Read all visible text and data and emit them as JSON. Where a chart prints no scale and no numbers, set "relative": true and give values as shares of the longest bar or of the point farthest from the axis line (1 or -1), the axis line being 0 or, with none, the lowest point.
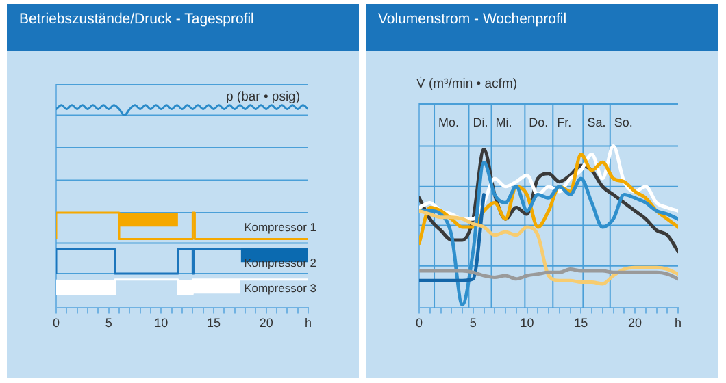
{
  "chart_data": [
    {
      "type": "step",
      "title": "Betriebszustände/Druck - Tagesprofil",
      "xlabel": "h",
      "relative": true,
      "xlim": [
        0,
        24
      ],
      "xticks": [
        0,
        {
          "value": 1,
          "label": null
        },
        {
          "value": 2,
          "label": null
        },
        {
          "value": 3,
          "label": null
        },
        {
          "value": 4,
          "label": null
        },
        5,
        {
          "value": 6,
          "label": null
        },
        {
          "value": 7,
          "label": null
        },
        {
          "value": 8,
          "label": null
        },
        {
          "value": 9,
          "label": null
        },
        10,
        {
          "value": 11,
          "label": null
        },
        {
          "value": 12,
          "label": null
        },
        {
          "value": 13,
          "label": null
        },
        {
          "value": 14,
          "label": null
        },
        15,
        {
          "value": 16,
          "label": null
        },
        {
          "value": 17,
          "label": null
        },
        {
          "value": 18,
          "label": null
        },
        {
          "value": 19,
          "label": null
        },
        20,
        {
          "value": 21,
          "label": null
        },
        {
          "value": 22,
          "label": null
        },
        {
          "value": 23,
          "label": null
        },
        {
          "value": 24,
          "label": null
        }
      ],
      "ref_lines": [
        {
          "axis": "y",
          "value": 1.1,
          "color": "#4a9fd8"
        },
        {
          "axis": "y",
          "value": 0.95,
          "color": "#4a9fd8"
        },
        {
          "axis": "y",
          "value": 0.79,
          "color": "#4a9fd8"
        },
        {
          "axis": "y",
          "value": 0.63,
          "color": "#4a9fd8"
        },
        {
          "axis": "y",
          "value": 0.47,
          "color": "#4a9fd8"
        },
        {
          "axis": "y",
          "value": 0.32,
          "color": "#4a9fd8"
        },
        {
          "axis": "y",
          "value": 0.17,
          "color": "#4a9fd8"
        }
      ],
      "series": [
        {
          "type": "line",
          "name": "p (bar • psig)",
          "color": "#2a8ac8",
          "x": [
            0,
            0.5,
            1,
            1.5,
            2,
            2.5,
            3,
            3.5,
            4,
            4.5,
            5,
            5.5,
            6,
            6.5,
            7,
            7.5,
            8,
            8.5,
            9,
            9.5,
            10,
            10.5,
            11,
            11.5,
            12,
            12.5,
            13,
            13.5,
            14,
            14.5,
            15,
            15.5,
            16,
            16.5,
            17,
            17.5,
            18,
            18.5,
            19,
            19.5,
            20,
            20.5,
            21,
            21.5,
            22,
            22.5,
            23,
            23.5,
            24
          ],
          "values": [
            0.98,
            1,
            0.98,
            1,
            0.98,
            1,
            0.98,
            1,
            0.98,
            1,
            0.98,
            1,
            0.98,
            0.95,
            0.98,
            1,
            0.98,
            1,
            0.98,
            1,
            0.98,
            1,
            0.98,
            1,
            0.98,
            1,
            0.98,
            1,
            0.98,
            1,
            0.98,
            1,
            0.98,
            1,
            0.98,
            1,
            0.98,
            1,
            0.98,
            1,
            0.98,
            1,
            0.98,
            1,
            0.98,
            1,
            0.98,
            1,
            0.98
          ]
        },
        {
          "color": "#f5a800",
          "x": [
            5.9,
            11.6
          ],
          "values": [
            0.435,
            0.435
          ]
        },
        {
          "color": "#0b6ab0",
          "x": [
            17.6,
            24
          ],
          "values": [
            0.26,
            0.26
          ]
        },
        {
          "color": "#ffffff",
          "x": [
            0,
            5.5,
            5.6,
            11.7,
            17.5
          ],
          "values": [
            0.105,
            0.105,
            null,
            0.105,
            0.105
          ]
        },
        {
          "name": "Kompressor 1",
          "color": "#f5a800",
          "x": [
            0,
            6,
            13,
            13.2,
            17.5,
            24
          ],
          "values": [
            0.34,
            0.47,
            0.34,
            0.47,
            0.34,
            0.34
          ]
        },
        {
          "name": "Kompressor 2",
          "color": "#1b75bc",
          "x": [
            0,
            5.6,
            11.6,
            13,
            13.1,
            17.5,
            24
          ],
          "values": [
            0.17,
            0.29,
            0.17,
            0.29,
            0.17,
            0.29,
            0.29
          ]
        },
        {
          "name": "Kompressor 3",
          "color": "#ffffff",
          "x": [
            0,
            5.6,
            11.6,
            13,
            13.1,
            24
          ],
          "values": [
            0.14,
            0.07,
            0.14,
            0.07,
            0.14,
            0.14
          ]
        }
      ]
    },
    {
      "type": "line",
      "title": "Volumenstrom - Wochenprofil",
      "ylabel": "V̇ (m³/min • acfm)",
      "xlabel": "h",
      "relative": true,
      "xlim": [
        0,
        24
      ],
      "xticks": [
        0,
        {
          "value": 1,
          "label": null
        },
        {
          "value": 2,
          "label": null
        },
        {
          "value": 3,
          "label": null
        },
        {
          "value": 4,
          "label": null
        },
        5,
        {
          "value": 6,
          "label": null
        },
        {
          "value": 7,
          "label": null
        },
        {
          "value": 8,
          "label": null
        },
        {
          "value": 9,
          "label": null
        },
        10,
        {
          "value": 11,
          "label": null
        },
        {
          "value": 12,
          "label": null
        },
        {
          "value": 13,
          "label": null
        },
        {
          "value": 14,
          "label": null
        },
        15,
        {
          "value": 16,
          "label": null
        },
        {
          "value": 17,
          "label": null
        },
        {
          "value": 18,
          "label": null
        },
        {
          "value": 19,
          "label": null
        },
        20,
        {
          "value": 21,
          "label": null
        },
        {
          "value": 22,
          "label": null
        },
        {
          "value": 23,
          "label": null
        },
        {
          "value": 24,
          "label": null
        }
      ],
      "x": [
        0,
        1,
        2,
        3,
        4,
        5,
        6,
        7,
        8,
        9,
        10,
        11,
        12,
        13,
        14,
        15,
        16,
        17,
        18,
        19,
        20,
        21,
        22,
        23,
        24
      ],
      "ref_lines": [
        {
          "axis": "y",
          "value": 0.26,
          "color": "#4a9fd8"
        },
        {
          "axis": "y",
          "value": 0.51,
          "color": "#4a9fd8"
        },
        {
          "axis": "y",
          "value": 0.75,
          "color": "#4a9fd8"
        },
        {
          "axis": "y",
          "value": 1.0,
          "color": "#4a9fd8"
        },
        {
          "axis": "y",
          "value": 1.26,
          "color": "#4a9fd8"
        },
        {
          "axis": "x",
          "value": 1.4,
          "label": "Mo.",
          "color": "#4a9fd8"
        },
        {
          "axis": "x",
          "value": 4.6,
          "label": "Di.",
          "color": "#4a9fd8"
        },
        {
          "axis": "x",
          "value": 6.7,
          "label": "Mi.",
          "color": "#4a9fd8"
        },
        {
          "axis": "x",
          "value": 9.8,
          "label": "Do.",
          "color": "#4a9fd8"
        },
        {
          "axis": "x",
          "value": 12.4,
          "label": "Fr.",
          "color": "#4a9fd8"
        },
        {
          "axis": "x",
          "value": 15.2,
          "label": "Sa.",
          "color": "#4a9fd8"
        },
        {
          "axis": "x",
          "value": 17.7,
          "label": "So.",
          "color": "#4a9fd8"
        }
      ],
      "series": [
        {
          "color": "#9a9a9a",
          "values": [
            0.23,
            0.23,
            0.23,
            0.23,
            0.23,
            0.22,
            0.2,
            0.19,
            0.2,
            0.18,
            0.2,
            0.21,
            0.22,
            0.22,
            0.24,
            0.23,
            0.23,
            0.23,
            0.22,
            0.22,
            0.22,
            0.22,
            0.22,
            0.21,
            0.18
          ]
        },
        {
          "color": "#f7cc70",
          "values": [
            0.6,
            0.58,
            0.56,
            0.56,
            0.55,
            0.52,
            0.5,
            0.45,
            0.47,
            0.45,
            0.5,
            0.45,
            0.2,
            0.17,
            0.17,
            0.16,
            0.16,
            0.15,
            0.2,
            0.24,
            0.25,
            0.25,
            0.25,
            0.24,
            0.21
          ]
        },
        {
          "color": "#1466a8",
          "values": [
            0.17,
            0.17,
            0.17,
            0.17,
            0.17,
            0.18,
            0.7,
            null,
            null,
            null,
            null,
            null,
            null,
            null,
            null,
            null,
            null,
            null,
            null,
            null,
            null,
            null,
            null,
            null,
            null
          ]
        },
        {
          "color": "#2f8fcc",
          "values": [
            0.6,
            0.6,
            0.58,
            0.45,
            0.02,
            0.35,
            0.9,
            0.7,
            0.65,
            0.75,
            0.6,
            0.7,
            0.68,
            0.75,
            0.7,
            0.8,
            0.65,
            0.5,
            0.55,
            0.7,
            0.68,
            0.65,
            0.6,
            0.58,
            0.55
          ]
        },
        {
          "color": "#f2a900",
          "values": [
            0.4,
            0.62,
            0.6,
            0.55,
            0.5,
            0.5,
            0.6,
            0.65,
            0.55,
            0.75,
            0.7,
            0.5,
            0.6,
            0.75,
            0.72,
            0.95,
            0.85,
            0.9,
            0.8,
            0.78,
            0.72,
            0.68,
            0.6,
            0.55,
            0.5
          ]
        },
        {
          "color": "#ffffff",
          "values": [
            0.62,
            0.65,
            0.6,
            0.58,
            0.55,
            0.55,
            0.65,
            0.8,
            0.75,
            0.78,
            0.82,
            0.7,
            0.75,
            0.72,
            0.8,
            0.85,
            0.95,
            0.8,
            1.0,
            0.78,
            0.72,
            0.75,
            0.65,
            0.62,
            0.6
          ]
        },
        {
          "color": "#3a3a3a",
          "values": [
            0.68,
            0.55,
            0.48,
            0.42,
            0.42,
            0.55,
            0.98,
            0.7,
            0.55,
            0.62,
            0.58,
            0.8,
            0.83,
            0.78,
            0.82,
            0.88,
            0.85,
            0.75,
            0.7,
            0.65,
            0.6,
            0.55,
            0.48,
            0.45,
            0.35
          ]
        }
      ]
    }
  ]
}
